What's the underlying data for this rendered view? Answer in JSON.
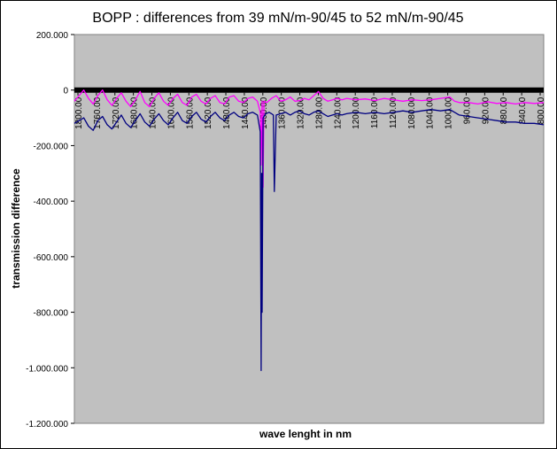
{
  "chart_data": {
    "type": "line",
    "title": "BOPP : differences from 39 mN/m-90/45 to 52 mN/m-90/45",
    "xlabel": "wave lenght in nm",
    "ylabel": "transmission difference",
    "ylim": [
      -1200,
      200
    ],
    "xlim": [
      1800,
      800
    ],
    "yticks": [
      200,
      0,
      -200,
      -400,
      -600,
      -800,
      -1000,
      -1200
    ],
    "ytick_labels": [
      "200.000",
      "0",
      "-200.000",
      "-400.000",
      "-600.000",
      "-800.000",
      "-1.000.000",
      "-1.200.000"
    ],
    "xtick_labels": [
      "1800.00",
      "1760.00",
      "1720.00",
      "1680.00",
      "1640.00",
      "1600.00",
      "1560.00",
      "1520.00",
      "1480.00",
      "1440.00",
      "1400.00",
      "1360.00",
      "1320.00",
      "1280.00",
      "1240.00",
      "1200.00",
      "1160.00",
      "1120.00",
      "1080.00",
      "1040.00",
      "1000.00",
      "960.00",
      "920.00",
      "880.00",
      "840.00",
      "800.00"
    ],
    "grid": false,
    "background_color": "#c0c0c0",
    "series": [
      {
        "color": "#ff00ff",
        "x": [
          1800,
          1790,
          1780,
          1770,
          1760,
          1750,
          1740,
          1730,
          1720,
          1710,
          1700,
          1690,
          1680,
          1670,
          1660,
          1650,
          1640,
          1630,
          1620,
          1610,
          1600,
          1590,
          1580,
          1570,
          1560,
          1550,
          1540,
          1530,
          1520,
          1510,
          1500,
          1490,
          1480,
          1470,
          1460,
          1450,
          1440,
          1430,
          1420,
          1410,
          1404,
          1402,
          1400,
          1398,
          1396,
          1390,
          1380,
          1370,
          1360,
          1350,
          1340,
          1330,
          1320,
          1310,
          1300,
          1290,
          1280,
          1270,
          1260,
          1250,
          1240,
          1230,
          1220,
          1200,
          1180,
          1160,
          1140,
          1120,
          1100,
          1080,
          1060,
          1040,
          1020,
          1000,
          990,
          980,
          960,
          940,
          920,
          900,
          880,
          860,
          840,
          820,
          800
        ],
        "y": [
          -40,
          -20,
          0,
          -30,
          -50,
          -20,
          0,
          -35,
          -55,
          -30,
          -10,
          -40,
          -60,
          -35,
          -5,
          -45,
          -60,
          -30,
          -10,
          -40,
          -55,
          -30,
          -15,
          -45,
          -55,
          -25,
          -15,
          -40,
          -50,
          -30,
          -20,
          -45,
          -50,
          -25,
          -20,
          -40,
          -45,
          -30,
          -25,
          -40,
          -80,
          -270,
          -40,
          -350,
          -40,
          -45,
          -30,
          -20,
          -40,
          -35,
          -25,
          -40,
          -38,
          -30,
          -35,
          -20,
          -5,
          -30,
          -40,
          -35,
          -30,
          -35,
          -30,
          -35,
          -32,
          -38,
          -30,
          -35,
          -40,
          -35,
          -38,
          -35,
          -30,
          -25,
          -40,
          -45,
          -45,
          -50,
          -42,
          -48,
          -45,
          -50,
          -45,
          -48,
          -45
        ]
      },
      {
        "color": "#000080",
        "x": [
          1800,
          1790,
          1780,
          1770,
          1760,
          1750,
          1740,
          1730,
          1720,
          1710,
          1700,
          1690,
          1680,
          1670,
          1660,
          1650,
          1640,
          1630,
          1620,
          1610,
          1600,
          1590,
          1580,
          1570,
          1560,
          1550,
          1540,
          1530,
          1520,
          1510,
          1500,
          1490,
          1480,
          1470,
          1460,
          1450,
          1440,
          1430,
          1420,
          1410,
          1404,
          1402,
          1401,
          1400,
          1398,
          1396,
          1392,
          1385,
          1380,
          1376,
          1374,
          1370,
          1360,
          1350,
          1340,
          1330,
          1320,
          1310,
          1300,
          1290,
          1280,
          1270,
          1260,
          1250,
          1240,
          1230,
          1220,
          1200,
          1180,
          1160,
          1140,
          1120,
          1100,
          1080,
          1060,
          1040,
          1020,
          1000,
          980,
          960,
          940,
          920,
          900,
          880,
          860,
          840,
          820,
          800
        ],
        "y": [
          -120,
          -110,
          -100,
          -130,
          -145,
          -110,
          -95,
          -125,
          -140,
          -115,
          -90,
          -120,
          -135,
          -110,
          -85,
          -115,
          -130,
          -105,
          -85,
          -110,
          -125,
          -100,
          -80,
          -110,
          -120,
          -95,
          -80,
          -105,
          -115,
          -95,
          -80,
          -100,
          -110,
          -90,
          -80,
          -95,
          -100,
          -85,
          -80,
          -90,
          -150,
          -1010,
          -300,
          -800,
          -100,
          -95,
          -85,
          -80,
          -85,
          -90,
          -365,
          -90,
          -85,
          -80,
          -90,
          -80,
          -75,
          -85,
          -90,
          -80,
          -75,
          -85,
          -95,
          -90,
          -85,
          -90,
          -85,
          -80,
          -85,
          -80,
          -85,
          -80,
          -75,
          -80,
          -75,
          -70,
          -75,
          -70,
          -90,
          -95,
          -100,
          -105,
          -110,
          -115,
          -115,
          -120,
          -120,
          -125
        ]
      }
    ]
  }
}
